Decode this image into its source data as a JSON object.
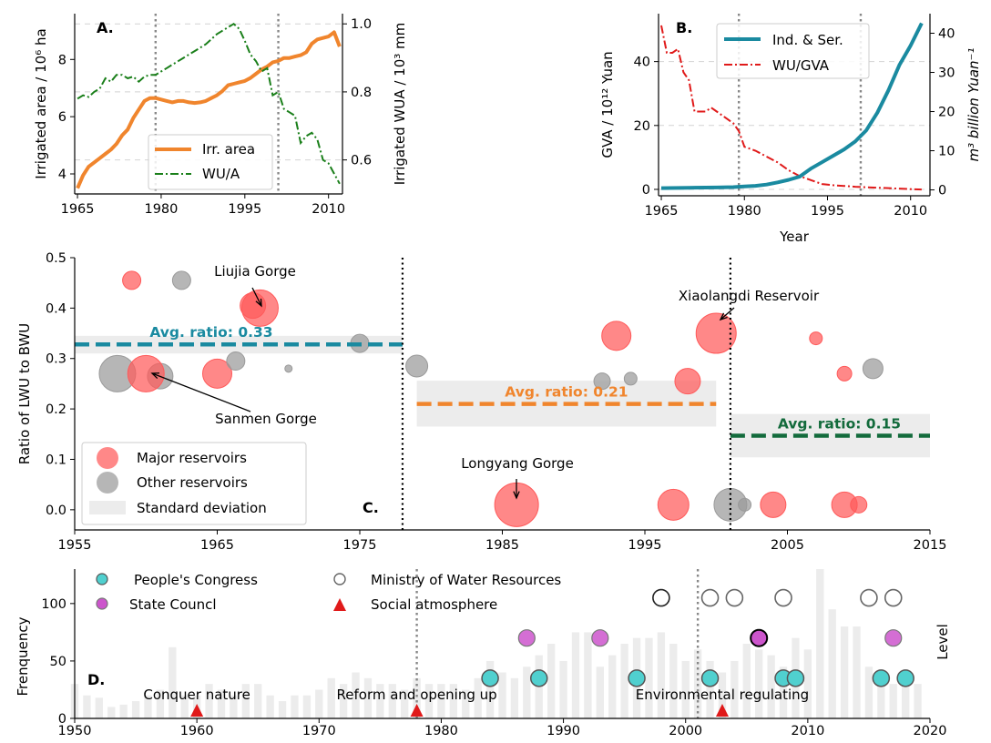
{
  "chart_data": [
    {
      "panel": "A.",
      "type": "line",
      "x_ticks": [
        1965,
        1980,
        1995,
        2010
      ],
      "xlim": [
        1964.5,
        2012.5
      ],
      "ylabel": "Irrigated area / 10⁶ ha",
      "ylim": [
        3.3,
        9.6
      ],
      "y_ticks": [
        4,
        6,
        8
      ],
      "y2label": "Irrigated WUA / 10³ mm",
      "y2lim": [
        0.5,
        1.03
      ],
      "y2_ticks": [
        "0.6",
        "0.8",
        "1.0"
      ],
      "vlines": [
        1979,
        2001
      ],
      "colors": {
        "area": "#f0852d",
        "wua": "#1a7f1a"
      },
      "series": [
        {
          "name": "Irr. area",
          "axis": "left",
          "style": "solid",
          "x": [
            1965,
            1966,
            1967,
            1968,
            1969,
            1970,
            1971,
            1972,
            1973,
            1974,
            1975,
            1976,
            1977,
            1978,
            1979,
            1980,
            1981,
            1982,
            1983,
            1984,
            1985,
            1986,
            1987,
            1988,
            1989,
            1990,
            1991,
            1992,
            1993,
            1994,
            1995,
            1996,
            1997,
            1998,
            1999,
            2000,
            2001,
            2002,
            2003,
            2004,
            2005,
            2006,
            2007,
            2008,
            2009,
            2010,
            2011,
            2012
          ],
          "values": [
            3.5,
            3.95,
            4.25,
            4.4,
            4.55,
            4.7,
            4.85,
            5.05,
            5.35,
            5.55,
            5.95,
            6.25,
            6.55,
            6.65,
            6.65,
            6.6,
            6.55,
            6.5,
            6.55,
            6.55,
            6.5,
            6.48,
            6.5,
            6.55,
            6.65,
            6.75,
            6.9,
            7.1,
            7.15,
            7.2,
            7.25,
            7.35,
            7.5,
            7.65,
            7.75,
            7.9,
            7.95,
            8.05,
            8.05,
            8.1,
            8.15,
            8.25,
            8.55,
            8.7,
            8.75,
            8.8,
            8.95,
            8.45
          ]
        },
        {
          "name": "WU/A",
          "axis": "right",
          "style": "dashdot",
          "x": [
            1965,
            1966,
            1967,
            1968,
            1969,
            1970,
            1971,
            1972,
            1973,
            1974,
            1975,
            1976,
            1977,
            1978,
            1979,
            1980,
            1981,
            1982,
            1983,
            1984,
            1985,
            1986,
            1987,
            1988,
            1989,
            1990,
            1991,
            1992,
            1993,
            1994,
            1995,
            1996,
            1997,
            1998,
            1999,
            2000,
            2001,
            2002,
            2003,
            2004,
            2005,
            2006,
            2007,
            2008,
            2009,
            2010,
            2011,
            2012
          ],
          "values": [
            0.78,
            0.79,
            0.785,
            0.8,
            0.81,
            0.84,
            0.83,
            0.85,
            0.85,
            0.84,
            0.845,
            0.83,
            0.845,
            0.85,
            0.85,
            0.86,
            0.87,
            0.88,
            0.89,
            0.9,
            0.91,
            0.92,
            0.93,
            0.94,
            0.955,
            0.97,
            0.98,
            0.99,
            1.0,
            0.985,
            0.95,
            0.91,
            0.89,
            0.86,
            0.87,
            0.79,
            0.8,
            0.75,
            0.74,
            0.73,
            0.65,
            0.67,
            0.68,
            0.66,
            0.6,
            0.59,
            0.56,
            0.53
          ]
        }
      ]
    },
    {
      "panel": "B.",
      "type": "line",
      "x_ticks": [
        1965,
        1980,
        1995,
        2010
      ],
      "xlim": [
        1964.5,
        2013.5
      ],
      "xlabel": "Year",
      "ylabel": "GVA / 10¹² Yuan",
      "ylim": [
        -2,
        55
      ],
      "y_ticks": [
        0,
        20,
        40
      ],
      "y2label": "m³ billion Yuan⁻¹",
      "y2lim": [
        -1.5,
        45
      ],
      "y2_ticks": [
        0,
        10,
        20,
        30,
        40
      ],
      "vlines": [
        1979,
        2001
      ],
      "colors": {
        "gva": "#1a8aa0",
        "wugva": "#e01a1a"
      },
      "series": [
        {
          "name": "Ind. & Ser.",
          "axis": "left",
          "style": "solid",
          "x": [
            1965,
            1970,
            1975,
            1978,
            1980,
            1982,
            1984,
            1986,
            1988,
            1990,
            1992,
            1994,
            1996,
            1998,
            2000,
            2002,
            2004,
            2006,
            2008,
            2010,
            2012
          ],
          "values": [
            0.4,
            0.5,
            0.6,
            0.7,
            0.9,
            1.1,
            1.5,
            2.2,
            3.0,
            4.0,
            6.5,
            8.5,
            10.5,
            12.5,
            15.0,
            18.5,
            24,
            31,
            39,
            45,
            52
          ]
        },
        {
          "name": "WU/GVA",
          "axis": "right",
          "style": "dashdot",
          "x": [
            1965,
            1966,
            1967,
            1968,
            1969,
            1970,
            1971,
            1972,
            1973,
            1974,
            1975,
            1976,
            1977,
            1978,
            1979,
            1980,
            1982,
            1984,
            1986,
            1988,
            1990,
            1992,
            1994,
            1996,
            1998,
            2000,
            2005,
            2010,
            2012
          ],
          "values": [
            42,
            35,
            35,
            36,
            30,
            28,
            20,
            20,
            20,
            21,
            20,
            19,
            18,
            17,
            15,
            11,
            10,
            8.5,
            7,
            5,
            3.5,
            2.5,
            1.5,
            1.2,
            1.0,
            0.8,
            0.5,
            0.2,
            0.1
          ]
        }
      ]
    },
    {
      "panel": "C.",
      "type": "scatter",
      "ylabel": "Ratio of LWU to BWU",
      "xlim": [
        1955,
        2015
      ],
      "x_ticks": [
        1955,
        1965,
        1975,
        1985,
        1995,
        2005,
        2015
      ],
      "ylim": [
        -0.04,
        0.5
      ],
      "y_ticks": [
        "0.0",
        "0.1",
        "0.2",
        "0.3",
        "0.4",
        "0.5"
      ],
      "vlines": [
        1978,
        2001
      ],
      "colors": {
        "major": "#ff5a5a",
        "other": "#9a9a9a",
        "std": "#ececec"
      },
      "avg_segments": [
        {
          "label": "Avg. ratio: 0.33",
          "x0": 1955,
          "x1": 1978,
          "mean": 0.328,
          "sd_low": 0.31,
          "sd_high": 0.345,
          "color": "#1a8aa0"
        },
        {
          "label": "Avg. ratio: 0.21",
          "x0": 1979,
          "x1": 2000,
          "mean": 0.21,
          "sd_low": 0.165,
          "sd_high": 0.256,
          "color": "#f0852d"
        },
        {
          "label": "Avg. ratio: 0.15",
          "x0": 2001,
          "x1": 2015,
          "mean": 0.147,
          "sd_low": 0.104,
          "sd_high": 0.19,
          "color": "#136b3c"
        }
      ],
      "points": [
        {
          "x": 1959,
          "y": 0.455,
          "size": 10,
          "group": "major"
        },
        {
          "x": 1962.5,
          "y": 0.455,
          "size": 10,
          "group": "other"
        },
        {
          "x": 1967.5,
          "y": 0.405,
          "size": 14,
          "group": "major"
        },
        {
          "x": 1968,
          "y": 0.4,
          "size": 20,
          "group": "major"
        },
        {
          "x": 1958,
          "y": 0.27,
          "size": 20,
          "group": "other"
        },
        {
          "x": 1961,
          "y": 0.265,
          "size": 14,
          "group": "other"
        },
        {
          "x": 1960,
          "y": 0.27,
          "size": 20,
          "group": "major"
        },
        {
          "x": 1965,
          "y": 0.27,
          "size": 16,
          "group": "major"
        },
        {
          "x": 1966.3,
          "y": 0.295,
          "size": 10,
          "group": "other"
        },
        {
          "x": 1970,
          "y": 0.28,
          "size": 4,
          "group": "other"
        },
        {
          "x": 1975,
          "y": 0.33,
          "size": 10,
          "group": "other"
        },
        {
          "x": 1979,
          "y": 0.285,
          "size": 12,
          "group": "other"
        },
        {
          "x": 1986,
          "y": 0.01,
          "size": 24,
          "group": "major"
        },
        {
          "x": 1993,
          "y": 0.345,
          "size": 16,
          "group": "major"
        },
        {
          "x": 1992,
          "y": 0.255,
          "size": 9,
          "group": "other"
        },
        {
          "x": 1994,
          "y": 0.26,
          "size": 7,
          "group": "other"
        },
        {
          "x": 1998,
          "y": 0.255,
          "size": 14,
          "group": "major"
        },
        {
          "x": 1997,
          "y": 0.01,
          "size": 17,
          "group": "major"
        },
        {
          "x": 2000,
          "y": 0.35,
          "size": 22,
          "group": "major"
        },
        {
          "x": 2001,
          "y": 0.01,
          "size": 18,
          "group": "other"
        },
        {
          "x": 2002,
          "y": 0.01,
          "size": 7,
          "group": "other"
        },
        {
          "x": 2004,
          "y": 0.01,
          "size": 14,
          "group": "major"
        },
        {
          "x": 2007,
          "y": 0.34,
          "size": 7,
          "group": "major"
        },
        {
          "x": 2009,
          "y": 0.27,
          "size": 8,
          "group": "major"
        },
        {
          "x": 2011,
          "y": 0.28,
          "size": 11,
          "group": "other"
        },
        {
          "x": 2009,
          "y": 0.01,
          "size": 14,
          "group": "major"
        },
        {
          "x": 2010,
          "y": 0.01,
          "size": 9,
          "group": "major"
        }
      ],
      "annotations": [
        {
          "text": "Liujia Gorge",
          "tx": 1968,
          "ty": 0.4
        },
        {
          "text": "Sanmen Gorge",
          "tx": 1960,
          "ty": 0.27
        },
        {
          "text": "Longyang Gorge",
          "tx": 1986,
          "ty": 0.01
        },
        {
          "text": "Xiaolangdi Reservoir",
          "tx": 2000,
          "ty": 0.35
        }
      ],
      "legend": [
        "Major reservoirs",
        "Other reservoirs",
        "Standard deviation"
      ]
    },
    {
      "panel": "D.",
      "type": "bar",
      "ylabel": "Frenquency",
      "y2label": "Level",
      "xlim": [
        1950,
        2020
      ],
      "x_ticks": [
        1950,
        1960,
        1970,
        1980,
        1990,
        2000,
        2010,
        2020
      ],
      "ylim": [
        0,
        130
      ],
      "y_ticks": [
        0,
        50,
        100
      ],
      "vlines": [
        1978,
        2001
      ],
      "colors": {
        "bar": "#ececec",
        "congress": "#50d0cf",
        "council": "#cc55cc",
        "social": "#e01a1a"
      },
      "bar_x": [
        1950,
        1951,
        1952,
        1953,
        1954,
        1955,
        1956,
        1957,
        1958,
        1959,
        1960,
        1961,
        1962,
        1963,
        1964,
        1965,
        1966,
        1967,
        1968,
        1969,
        1970,
        1971,
        1972,
        1973,
        1974,
        1975,
        1976,
        1977,
        1978,
        1979,
        1980,
        1981,
        1982,
        1983,
        1984,
        1985,
        1986,
        1987,
        1988,
        1989,
        1990,
        1991,
        1992,
        1993,
        1994,
        1995,
        1996,
        1997,
        1998,
        1999,
        2000,
        2001,
        2002,
        2003,
        2004,
        2005,
        2006,
        2007,
        2008,
        2009,
        2010,
        2011,
        2012,
        2013,
        2014,
        2015,
        2016,
        2017,
        2018,
        2019
      ],
      "bar_values": [
        30,
        20,
        18,
        10,
        12,
        15,
        20,
        25,
        62,
        20,
        20,
        30,
        25,
        20,
        30,
        30,
        20,
        15,
        20,
        20,
        25,
        35,
        30,
        40,
        35,
        30,
        30,
        25,
        35,
        30,
        30,
        30,
        25,
        35,
        50,
        40,
        35,
        45,
        55,
        65,
        50,
        75,
        75,
        45,
        55,
        65,
        70,
        70,
        75,
        65,
        50,
        60,
        50,
        40,
        50,
        65,
        60,
        55,
        45,
        70,
        60,
        130,
        95,
        80,
        80,
        45,
        35,
        30,
        35,
        30
      ],
      "events": [
        {
          "series": "People's Congress",
          "marker": "circle",
          "x": [
            1984,
            1988,
            1996,
            2002,
            2008,
            2009,
            2016,
            2018
          ],
          "y": [
            35,
            35,
            35,
            35,
            35,
            35,
            35,
            35
          ]
        },
        {
          "series": "State Councl",
          "marker": "circle",
          "x": [
            1987,
            1993,
            2006,
            2017
          ],
          "y": [
            70,
            70,
            70,
            70
          ]
        },
        {
          "series": "Ministry of Water Resources",
          "marker": "open-circle",
          "x": [
            1998,
            2002,
            2004,
            2008,
            2015,
            2017
          ],
          "y": [
            105,
            105,
            105,
            105,
            105,
            105
          ]
        },
        {
          "series": "Social atmosphere",
          "marker": "triangle",
          "x": [
            1960,
            1978,
            2003
          ],
          "y": [
            0,
            0,
            0
          ]
        }
      ],
      "era_labels": [
        {
          "text": "Conquer nature",
          "x": 1960
        },
        {
          "text": "Reform and opening up",
          "x": 1978
        },
        {
          "text": "Environmental regulating",
          "x": 2003
        }
      ],
      "legend": [
        "People's Congress",
        "State Councl",
        "Ministry of Water Resources",
        "Social atmosphere"
      ]
    }
  ]
}
